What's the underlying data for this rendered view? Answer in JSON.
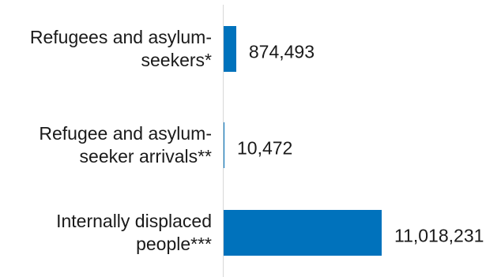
{
  "chart_data": {
    "type": "bar",
    "orientation": "horizontal",
    "categories": [
      "Refugees and asylum-seekers*",
      "Refugee and asylum-seeker arrivals**",
      "Internally displaced people***"
    ],
    "category_lines": [
      [
        "Refugees and asylum-",
        "seekers*"
      ],
      [
        "Refugee and asylum-",
        "seeker arrivals**"
      ],
      [
        "Internally displaced",
        "people***"
      ]
    ],
    "values": [
      874493,
      10472,
      11018231
    ],
    "value_labels": [
      "874,493",
      "10,472",
      "11,018,231"
    ],
    "xlim": [
      0,
      11018231
    ],
    "bar_color": "#0072bc",
    "grid": false,
    "legend": "none",
    "title": "",
    "xlabel": "",
    "ylabel": ""
  }
}
